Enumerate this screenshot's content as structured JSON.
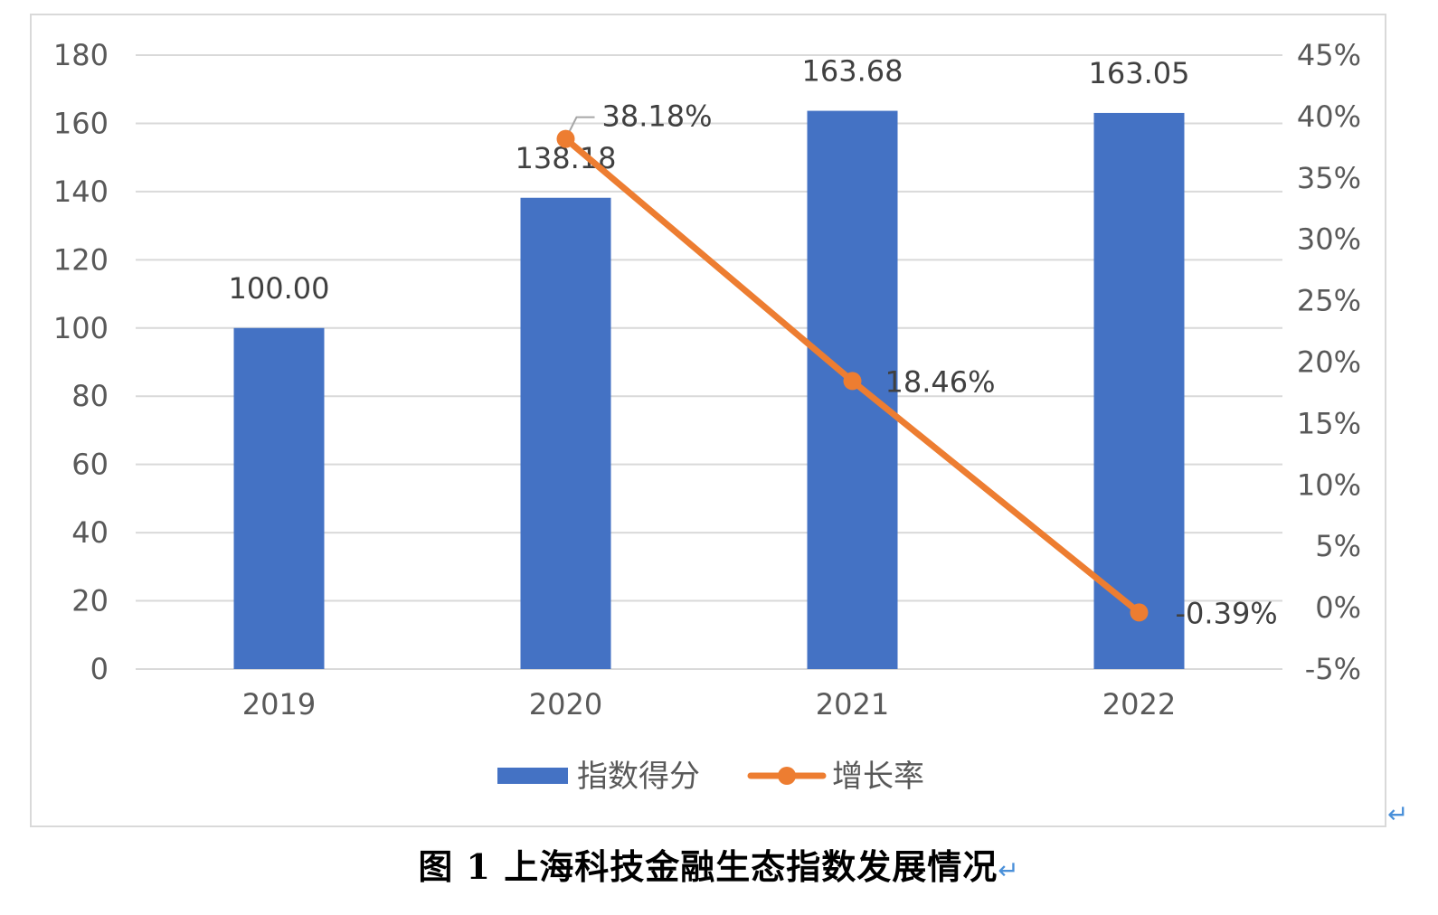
{
  "caption": "图 1  上海科技金融生态指数发展情况",
  "paragraph_mark": "↵",
  "colors": {
    "bar": "#4472c4",
    "line": "#ed7d31",
    "grid": "#d9d9d9",
    "tick_text": "#595959",
    "label_text": "#404040"
  },
  "chart_data": {
    "type": "bar",
    "categories": [
      "2019",
      "2020",
      "2021",
      "2022"
    ],
    "series": [
      {
        "name": "指数得分",
        "type": "bar",
        "axis": "left",
        "values": [
          100.0,
          138.18,
          163.68,
          163.05
        ],
        "labels": [
          "100.00",
          "138.18",
          "163.68",
          "163.05"
        ]
      },
      {
        "name": "增长率",
        "type": "line",
        "axis": "right",
        "values": [
          null,
          38.18,
          18.46,
          -0.39
        ],
        "labels": [
          "",
          "38.18%",
          "18.46%",
          "-0.39%"
        ]
      }
    ],
    "y_left": {
      "min": 0,
      "max": 180,
      "ticks": [
        "0",
        "20",
        "40",
        "60",
        "80",
        "100",
        "120",
        "140",
        "160",
        "180"
      ]
    },
    "y_right": {
      "min": -5,
      "max": 45,
      "ticks": [
        "-5%",
        "0%",
        "5%",
        "10%",
        "15%",
        "20%",
        "25%",
        "30%",
        "35%",
        "40%",
        "45%"
      ]
    },
    "grid": true,
    "legend_position": "bottom"
  }
}
